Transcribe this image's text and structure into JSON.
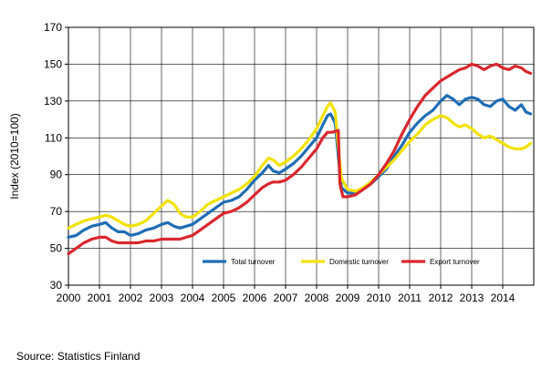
{
  "chart_data": {
    "type": "line",
    "ylabel": "Index (2010=100)",
    "ylim": [
      30,
      170
    ],
    "yticks": [
      30,
      50,
      70,
      90,
      110,
      130,
      150,
      170
    ],
    "xlim": [
      2000,
      2015
    ],
    "xticks": [
      "2000",
      "2001",
      "2002",
      "2003",
      "2004",
      "2005",
      "2006",
      "2007",
      "2008",
      "2009",
      "2010",
      "2011",
      "2012",
      "2013",
      "2014"
    ],
    "grid": true,
    "legend_position": "bottom-right",
    "series": [
      {
        "name": "Total turnover",
        "color": "#1f6db5",
        "points": [
          [
            2000.0,
            56
          ],
          [
            2000.25,
            57
          ],
          [
            2000.5,
            60
          ],
          [
            2000.75,
            62
          ],
          [
            2001.0,
            63
          ],
          [
            2001.2,
            64
          ],
          [
            2001.4,
            61
          ],
          [
            2001.6,
            59
          ],
          [
            2001.8,
            59
          ],
          [
            2002.0,
            57
          ],
          [
            2002.25,
            58
          ],
          [
            2002.5,
            60
          ],
          [
            2002.75,
            61
          ],
          [
            2003.0,
            63
          ],
          [
            2003.2,
            64
          ],
          [
            2003.4,
            62
          ],
          [
            2003.6,
            61
          ],
          [
            2003.8,
            62
          ],
          [
            2004.0,
            63
          ],
          [
            2004.25,
            66
          ],
          [
            2004.5,
            69
          ],
          [
            2004.75,
            72
          ],
          [
            2005.0,
            75
          ],
          [
            2005.25,
            76
          ],
          [
            2005.5,
            78
          ],
          [
            2005.75,
            82
          ],
          [
            2006.0,
            87
          ],
          [
            2006.25,
            91
          ],
          [
            2006.45,
            95
          ],
          [
            2006.6,
            92
          ],
          [
            2006.8,
            91
          ],
          [
            2007.0,
            93
          ],
          [
            2007.25,
            96
          ],
          [
            2007.5,
            100
          ],
          [
            2007.75,
            105
          ],
          [
            2008.0,
            110
          ],
          [
            2008.2,
            117
          ],
          [
            2008.35,
            122
          ],
          [
            2008.45,
            123
          ],
          [
            2008.6,
            118
          ],
          [
            2008.7,
            100
          ],
          [
            2008.8,
            83
          ],
          [
            2009.0,
            80
          ],
          [
            2009.25,
            80
          ],
          [
            2009.5,
            82
          ],
          [
            2009.75,
            85
          ],
          [
            2010.0,
            89
          ],
          [
            2010.25,
            93
          ],
          [
            2010.5,
            100
          ],
          [
            2010.75,
            106
          ],
          [
            2011.0,
            113
          ],
          [
            2011.25,
            118
          ],
          [
            2011.5,
            122
          ],
          [
            2011.75,
            125
          ],
          [
            2012.0,
            130
          ],
          [
            2012.2,
            133
          ],
          [
            2012.4,
            131
          ],
          [
            2012.6,
            128
          ],
          [
            2012.8,
            131
          ],
          [
            2013.0,
            132
          ],
          [
            2013.2,
            131
          ],
          [
            2013.4,
            128
          ],
          [
            2013.6,
            127
          ],
          [
            2013.8,
            130
          ],
          [
            2014.0,
            131
          ],
          [
            2014.2,
            127
          ],
          [
            2014.4,
            125
          ],
          [
            2014.6,
            128
          ],
          [
            2014.75,
            124
          ],
          [
            2014.9,
            123
          ]
        ]
      },
      {
        "name": "Domestic turnover",
        "color": "#f2e200",
        "points": [
          [
            2000.0,
            61
          ],
          [
            2000.25,
            63
          ],
          [
            2000.5,
            65
          ],
          [
            2000.75,
            66
          ],
          [
            2001.0,
            67
          ],
          [
            2001.2,
            68
          ],
          [
            2001.4,
            67
          ],
          [
            2001.6,
            65
          ],
          [
            2001.8,
            63
          ],
          [
            2002.0,
            62
          ],
          [
            2002.25,
            63
          ],
          [
            2002.5,
            65
          ],
          [
            2002.75,
            69
          ],
          [
            2003.0,
            73
          ],
          [
            2003.2,
            76
          ],
          [
            2003.4,
            74
          ],
          [
            2003.6,
            69
          ],
          [
            2003.8,
            67
          ],
          [
            2004.0,
            67
          ],
          [
            2004.25,
            70
          ],
          [
            2004.5,
            74
          ],
          [
            2004.75,
            76
          ],
          [
            2005.0,
            78
          ],
          [
            2005.25,
            80
          ],
          [
            2005.5,
            82
          ],
          [
            2005.75,
            85
          ],
          [
            2006.0,
            89
          ],
          [
            2006.25,
            95
          ],
          [
            2006.45,
            99
          ],
          [
            2006.6,
            98
          ],
          [
            2006.8,
            95
          ],
          [
            2007.0,
            97
          ],
          [
            2007.25,
            100
          ],
          [
            2007.5,
            104
          ],
          [
            2007.75,
            109
          ],
          [
            2008.0,
            115
          ],
          [
            2008.2,
            122
          ],
          [
            2008.35,
            127
          ],
          [
            2008.45,
            129
          ],
          [
            2008.6,
            124
          ],
          [
            2008.7,
            105
          ],
          [
            2008.8,
            88
          ],
          [
            2009.0,
            82
          ],
          [
            2009.25,
            81
          ],
          [
            2009.5,
            83
          ],
          [
            2009.75,
            86
          ],
          [
            2010.0,
            90
          ],
          [
            2010.25,
            94
          ],
          [
            2010.5,
            98
          ],
          [
            2010.75,
            103
          ],
          [
            2011.0,
            108
          ],
          [
            2011.25,
            112
          ],
          [
            2011.5,
            117
          ],
          [
            2011.75,
            120
          ],
          [
            2012.0,
            122
          ],
          [
            2012.2,
            121
          ],
          [
            2012.4,
            118
          ],
          [
            2012.6,
            116
          ],
          [
            2012.8,
            117
          ],
          [
            2013.0,
            115
          ],
          [
            2013.2,
            112
          ],
          [
            2013.4,
            110
          ],
          [
            2013.6,
            111
          ],
          [
            2013.8,
            109
          ],
          [
            2014.0,
            107
          ],
          [
            2014.2,
            105
          ],
          [
            2014.4,
            104
          ],
          [
            2014.6,
            104
          ],
          [
            2014.75,
            105
          ],
          [
            2014.9,
            107
          ]
        ]
      },
      {
        "name": "Export turnover",
        "color": "#d9272e",
        "points": [
          [
            2000.0,
            47
          ],
          [
            2000.25,
            50
          ],
          [
            2000.5,
            53
          ],
          [
            2000.75,
            55
          ],
          [
            2001.0,
            56
          ],
          [
            2001.2,
            56
          ],
          [
            2001.4,
            54
          ],
          [
            2001.6,
            53
          ],
          [
            2001.8,
            53
          ],
          [
            2002.0,
            53
          ],
          [
            2002.25,
            53
          ],
          [
            2002.5,
            54
          ],
          [
            2002.75,
            54
          ],
          [
            2003.0,
            55
          ],
          [
            2003.2,
            55
          ],
          [
            2003.4,
            55
          ],
          [
            2003.6,
            55
          ],
          [
            2003.8,
            56
          ],
          [
            2004.0,
            57
          ],
          [
            2004.25,
            60
          ],
          [
            2004.5,
            63
          ],
          [
            2004.75,
            66
          ],
          [
            2005.0,
            69
          ],
          [
            2005.25,
            70
          ],
          [
            2005.5,
            72
          ],
          [
            2005.75,
            75
          ],
          [
            2006.0,
            79
          ],
          [
            2006.25,
            83
          ],
          [
            2006.45,
            85
          ],
          [
            2006.6,
            86
          ],
          [
            2006.8,
            86
          ],
          [
            2007.0,
            87
          ],
          [
            2007.25,
            90
          ],
          [
            2007.5,
            94
          ],
          [
            2007.75,
            99
          ],
          [
            2008.0,
            104
          ],
          [
            2008.2,
            110
          ],
          [
            2008.35,
            113
          ],
          [
            2008.5,
            113
          ],
          [
            2008.7,
            114
          ],
          [
            2008.75,
            85
          ],
          [
            2008.85,
            78
          ],
          [
            2009.0,
            78
          ],
          [
            2009.25,
            79
          ],
          [
            2009.5,
            82
          ],
          [
            2009.75,
            85
          ],
          [
            2010.0,
            90
          ],
          [
            2010.25,
            96
          ],
          [
            2010.5,
            103
          ],
          [
            2010.75,
            112
          ],
          [
            2011.0,
            120
          ],
          [
            2011.25,
            127
          ],
          [
            2011.5,
            133
          ],
          [
            2011.75,
            137
          ],
          [
            2012.0,
            141
          ],
          [
            2012.2,
            143
          ],
          [
            2012.4,
            145
          ],
          [
            2012.6,
            147
          ],
          [
            2012.8,
            148
          ],
          [
            2013.0,
            150
          ],
          [
            2013.2,
            149
          ],
          [
            2013.4,
            147
          ],
          [
            2013.6,
            149
          ],
          [
            2013.8,
            150
          ],
          [
            2014.0,
            148
          ],
          [
            2014.2,
            147
          ],
          [
            2014.4,
            149
          ],
          [
            2014.6,
            148
          ],
          [
            2014.75,
            146
          ],
          [
            2014.9,
            145
          ]
        ]
      }
    ]
  },
  "source_text": "Source:  Statistics Finland"
}
